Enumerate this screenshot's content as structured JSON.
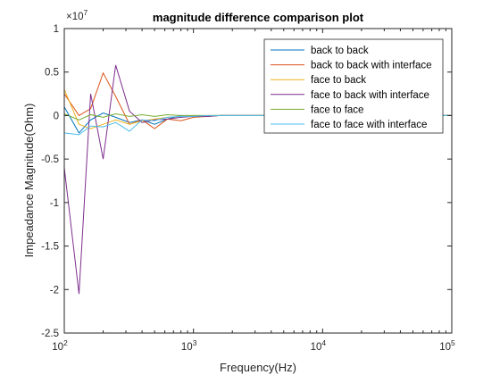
{
  "chart_data": {
    "type": "line",
    "title": "magnitude difference comparison plot",
    "xlabel": "Frequency(Hz)",
    "ylabel": "Impeadance Magnitude(Ohm)",
    "xscale": "log",
    "xlim": [
      100,
      100000
    ],
    "ylim": [
      -2.5,
      1
    ],
    "y_exponent_label": "×10",
    "y_exponent_power": "7",
    "x_ticks": [
      {
        "value": 100,
        "base": "10",
        "power": "2"
      },
      {
        "value": 1000,
        "base": "10",
        "power": "3"
      },
      {
        "value": 10000,
        "base": "10",
        "power": "4"
      },
      {
        "value": 100000,
        "base": "10",
        "power": "5"
      }
    ],
    "y_ticks": [
      {
        "value": 1,
        "label": "1"
      },
      {
        "value": 0.5,
        "label": "0.5"
      },
      {
        "value": 0,
        "label": "0"
      },
      {
        "value": -0.5,
        "label": "-0.5"
      },
      {
        "value": -1,
        "label": "-1"
      },
      {
        "value": -1.5,
        "label": "-1.5"
      },
      {
        "value": -2,
        "label": "-2"
      },
      {
        "value": -2.5,
        "label": "-2.5"
      }
    ],
    "grid": false,
    "legend_position": "top-right",
    "x": [
      100,
      130,
      160,
      200,
      250,
      320,
      400,
      500,
      630,
      800,
      1000,
      1300,
      1600,
      2000,
      2500,
      3200,
      4000,
      5000,
      6300,
      8000,
      10000,
      20000,
      50000,
      100000
    ],
    "series": [
      {
        "name": "back to back",
        "color": "#0072BD",
        "values": [
          0.1,
          -0.2,
          -0.05,
          0.03,
          -0.02,
          -0.08,
          -0.05,
          -0.1,
          -0.04,
          0.0,
          -0.01,
          -0.01,
          0.0,
          0.0,
          0.0,
          0.0,
          0.0,
          0.0,
          0.0,
          0.0,
          0.0,
          0.0,
          0.0,
          0.0
        ]
      },
      {
        "name": "back to back with interface",
        "color": "#D95319",
        "values": [
          0.25,
          0.0,
          0.08,
          0.49,
          0.22,
          -0.1,
          -0.05,
          -0.15,
          -0.04,
          -0.06,
          -0.02,
          -0.01,
          0.0,
          0.0,
          0.0,
          0.0,
          0.0,
          0.0,
          0.0,
          0.0,
          0.0,
          0.0,
          0.0,
          0.0
        ]
      },
      {
        "name": "face to back",
        "color": "#EDB120",
        "values": [
          0.3,
          -0.1,
          -0.15,
          -0.1,
          -0.05,
          -0.1,
          -0.06,
          -0.04,
          -0.02,
          -0.01,
          0.0,
          0.0,
          0.0,
          0.0,
          0.0,
          0.0,
          0.0,
          0.0,
          0.0,
          0.0,
          0.0,
          0.0,
          0.0,
          0.0
        ]
      },
      {
        "name": "face to back with interface",
        "color": "#7E2F8E",
        "values": [
          -0.6,
          -2.05,
          0.25,
          -0.5,
          0.58,
          0.05,
          -0.08,
          -0.05,
          -0.04,
          -0.02,
          -0.01,
          -0.01,
          0.0,
          0.0,
          0.0,
          0.0,
          0.0,
          0.0,
          0.0,
          0.0,
          0.0,
          0.0,
          0.0,
          0.0
        ]
      },
      {
        "name": "face to face",
        "color": "#77AC30",
        "values": [
          0.02,
          -0.05,
          0.01,
          -0.02,
          0.02,
          -0.01,
          0.01,
          -0.01,
          0.01,
          0.0,
          0.0,
          0.0,
          0.0,
          0.0,
          0.0,
          0.0,
          0.0,
          0.0,
          0.0,
          0.0,
          0.0,
          0.0,
          0.0,
          0.0
        ]
      },
      {
        "name": "face to face with interface",
        "color": "#4DBEEE",
        "values": [
          -0.2,
          -0.22,
          -0.12,
          -0.13,
          -0.08,
          -0.18,
          -0.05,
          -0.06,
          -0.02,
          -0.01,
          -0.01,
          0.0,
          0.0,
          0.0,
          0.0,
          0.0,
          0.0,
          0.0,
          0.0,
          0.0,
          0.0,
          0.0,
          0.0,
          0.0
        ]
      }
    ]
  }
}
